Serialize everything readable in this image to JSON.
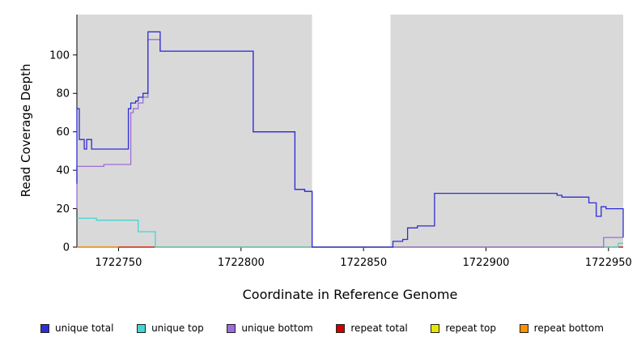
{
  "figure": {
    "background": "#ffffff",
    "plot_area_background": "#d9d9d9"
  },
  "chart_data": {
    "type": "line",
    "title": "",
    "xlabel": "Coordinate in Reference Genome",
    "ylabel": "Read Coverage Depth",
    "xlim": [
      1722733,
      1722956
    ],
    "ylim": [
      0,
      121
    ],
    "x_ticks": [
      1722750,
      1722800,
      1722850,
      1722900,
      1722950
    ],
    "y_ticks": [
      0,
      20,
      40,
      60,
      80,
      100
    ],
    "grid": false,
    "legend_position": "bottom",
    "plot_background": "#d9d9d9",
    "gap_region": {
      "x_start": 1722829,
      "x_end": 1722861,
      "color": "#ffffff"
    },
    "series": [
      {
        "name": "repeat top",
        "color": "#e6e600",
        "points": [
          [
            1722733,
            0
          ],
          [
            1722956,
            0
          ]
        ]
      },
      {
        "name": "repeat total",
        "color": "#cc0000",
        "points": [
          [
            1722733,
            0
          ],
          [
            1722956,
            0
          ]
        ]
      },
      {
        "name": "repeat bottom",
        "color": "#ff9100",
        "points": [
          [
            1722733,
            0
          ],
          [
            1722750,
            0
          ]
        ]
      },
      {
        "name": "unique top",
        "color": "#45d4d4",
        "points": [
          [
            1722733,
            15
          ],
          [
            1722740,
            15
          ],
          [
            1722741,
            14
          ],
          [
            1722757,
            14
          ],
          [
            1722758,
            8
          ],
          [
            1722764,
            8
          ],
          [
            1722765,
            0
          ],
          [
            1722953,
            0
          ],
          [
            1722954,
            2
          ],
          [
            1722956,
            2
          ]
        ]
      },
      {
        "name": "unique bottom",
        "color": "#9a6ed8",
        "points": [
          [
            1722733,
            20
          ],
          [
            1722733,
            42
          ],
          [
            1722743,
            42
          ],
          [
            1722744,
            43
          ],
          [
            1722754,
            43
          ],
          [
            1722755,
            70
          ],
          [
            1722756,
            72
          ],
          [
            1722758,
            75
          ],
          [
            1722760,
            78
          ],
          [
            1722762,
            108
          ],
          [
            1722766,
            108
          ],
          [
            1722767,
            102
          ],
          [
            1722805,
            102
          ],
          [
            1722805,
            60
          ],
          [
            1722822,
            60
          ],
          [
            1722822,
            30
          ],
          [
            1722826,
            29
          ],
          [
            1722829,
            0
          ],
          [
            1722947,
            0
          ],
          [
            1722948,
            5
          ],
          [
            1722956,
            5
          ]
        ]
      },
      {
        "name": "unique total",
        "color": "#2e2ed4",
        "points": [
          [
            1722733,
            33
          ],
          [
            1722733,
            72
          ],
          [
            1722734,
            56
          ],
          [
            1722736,
            51
          ],
          [
            1722737,
            56
          ],
          [
            1722739,
            51
          ],
          [
            1722754,
            72
          ],
          [
            1722755,
            75
          ],
          [
            1722757,
            76
          ],
          [
            1722758,
            78
          ],
          [
            1722760,
            80
          ],
          [
            1722762,
            112
          ],
          [
            1722766,
            112
          ],
          [
            1722767,
            102
          ],
          [
            1722805,
            102
          ],
          [
            1722805,
            60
          ],
          [
            1722822,
            60
          ],
          [
            1722822,
            30
          ],
          [
            1722826,
            29
          ],
          [
            1722829,
            0
          ],
          [
            1722861,
            0
          ],
          [
            1722862,
            3
          ],
          [
            1722866,
            4
          ],
          [
            1722868,
            10
          ],
          [
            1722872,
            11
          ],
          [
            1722879,
            28
          ],
          [
            1722927,
            28
          ],
          [
            1722929,
            27
          ],
          [
            1722931,
            26
          ],
          [
            1722941,
            26
          ],
          [
            1722942,
            23
          ],
          [
            1722945,
            16
          ],
          [
            1722947,
            21
          ],
          [
            1722949,
            20
          ],
          [
            1722954,
            20
          ],
          [
            1722956,
            5
          ]
        ]
      }
    ],
    "legend": [
      {
        "label": "unique total",
        "color": "#2e2ed4"
      },
      {
        "label": "unique top",
        "color": "#45d4d4"
      },
      {
        "label": "unique bottom",
        "color": "#9a6ed8"
      },
      {
        "label": "repeat total",
        "color": "#cc0000"
      },
      {
        "label": "repeat top",
        "color": "#e6e600"
      },
      {
        "label": "repeat bottom",
        "color": "#ff9100"
      }
    ]
  }
}
